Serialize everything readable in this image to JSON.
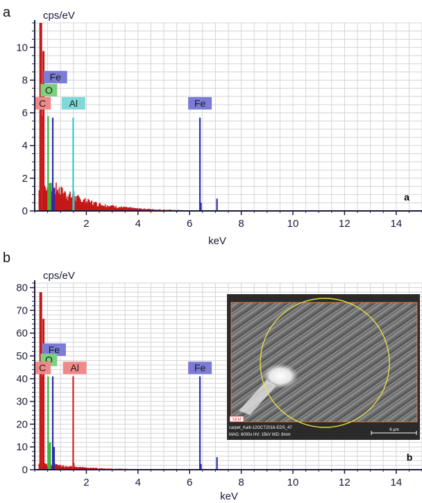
{
  "chart_data": [
    {
      "panel": "a",
      "type": "bar",
      "ylabel": "cps/eV",
      "xlabel": "keV",
      "xlim": [
        0,
        15
      ],
      "ylim": [
        0,
        11.5
      ],
      "x_ticks": [
        "2",
        "4",
        "6",
        "8",
        "10",
        "12",
        "14"
      ],
      "y_ticks": [
        "0",
        "2",
        "4",
        "6",
        "8",
        "10"
      ],
      "corner_label": "a",
      "grid": true,
      "series": [
        {
          "name": "C",
          "color": "#e8706a"
        },
        {
          "name": "O",
          "color": "#4cbb4c"
        },
        {
          "name": "Fe",
          "color": "#2b2bb0"
        },
        {
          "name": "Al",
          "color": "#3cc6c6"
        }
      ],
      "element_lines": [
        {
          "element": "C",
          "x": 0.28,
          "y": 5.8,
          "color": "#d12020"
        },
        {
          "element": "O",
          "x": 0.52,
          "y": 5.8,
          "color": "#3cb83c"
        },
        {
          "element": "Fe",
          "x": 0.7,
          "y": 5.7,
          "color": "#2b2bb0"
        },
        {
          "element": "Al",
          "x": 1.49,
          "y": 5.7,
          "color": "#3cc6c6"
        },
        {
          "element": "Fe",
          "x": 6.4,
          "y": 5.7,
          "color": "#2b2bb0"
        },
        {
          "element": "Fe",
          "x": 7.06,
          "y": 0.75,
          "color": "#2b2bb0"
        }
      ],
      "element_tags": [
        {
          "text": "Fe",
          "x": 0.8,
          "y": 7.8,
          "color": "#7c7cd6"
        },
        {
          "text": "O",
          "x": 0.55,
          "y": 7.0,
          "color": "#7ed07e"
        },
        {
          "text": "C",
          "x": 0.3,
          "y": 6.2,
          "color": "#f08a8a"
        },
        {
          "text": "Al",
          "x": 1.5,
          "y": 6.2,
          "color": "#7fd9d9"
        },
        {
          "text": "Fe",
          "x": 6.4,
          "y": 6.2,
          "color": "#7c7cd6"
        }
      ]
    },
    {
      "panel": "b",
      "type": "bar",
      "ylabel": "cps/eV",
      "xlabel": "keV",
      "xlim": [
        0,
        15
      ],
      "ylim": [
        0,
        82
      ],
      "x_ticks": [
        "2",
        "4",
        "6",
        "8",
        "10",
        "12",
        "14"
      ],
      "y_ticks": [
        "0",
        "10",
        "20",
        "30",
        "40",
        "50",
        "60",
        "70",
        "80"
      ],
      "corner_label": "b",
      "grid": true,
      "series": [
        {
          "name": "C",
          "color": "#e8706a"
        },
        {
          "name": "O",
          "color": "#4cbb4c"
        },
        {
          "name": "Fe",
          "color": "#2b2bb0"
        },
        {
          "name": "Al",
          "color": "#e8706a"
        }
      ],
      "element_lines": [
        {
          "element": "C",
          "x": 0.28,
          "y": 41,
          "color": "#d12020"
        },
        {
          "element": "O",
          "x": 0.52,
          "y": 41,
          "color": "#3cb83c"
        },
        {
          "element": "Fe",
          "x": 0.7,
          "y": 41,
          "color": "#2b2bb0"
        },
        {
          "element": "Al",
          "x": 1.49,
          "y": 41,
          "color": "#d12020"
        },
        {
          "element": "Fe",
          "x": 6.4,
          "y": 41,
          "color": "#2b2bb0"
        },
        {
          "element": "Fe",
          "x": 7.06,
          "y": 5.5,
          "color": "#2b2bb0"
        }
      ],
      "element_tags": [
        {
          "text": "Fe",
          "x": 0.75,
          "y": 50,
          "color": "#7c7cd6"
        },
        {
          "text": "O",
          "x": 0.55,
          "y": 45.5,
          "color": "#7ed07e"
        },
        {
          "text": "C",
          "x": 0.3,
          "y": 42,
          "color": "#f08a8a"
        },
        {
          "text": "Al",
          "x": 1.55,
          "y": 42,
          "color": "#f08a8a"
        },
        {
          "text": "Fe",
          "x": 6.4,
          "y": 42,
          "color": "#7c7cd6"
        }
      ],
      "inset": {
        "badge": "SEM",
        "caption_line1": "carpet_Kaiti-12OCT2016-EDS_47",
        "caption_line2": "MAG: 6000x   HV: 15kV   WD: 8mm",
        "scale_label": "6 µm"
      }
    }
  ]
}
